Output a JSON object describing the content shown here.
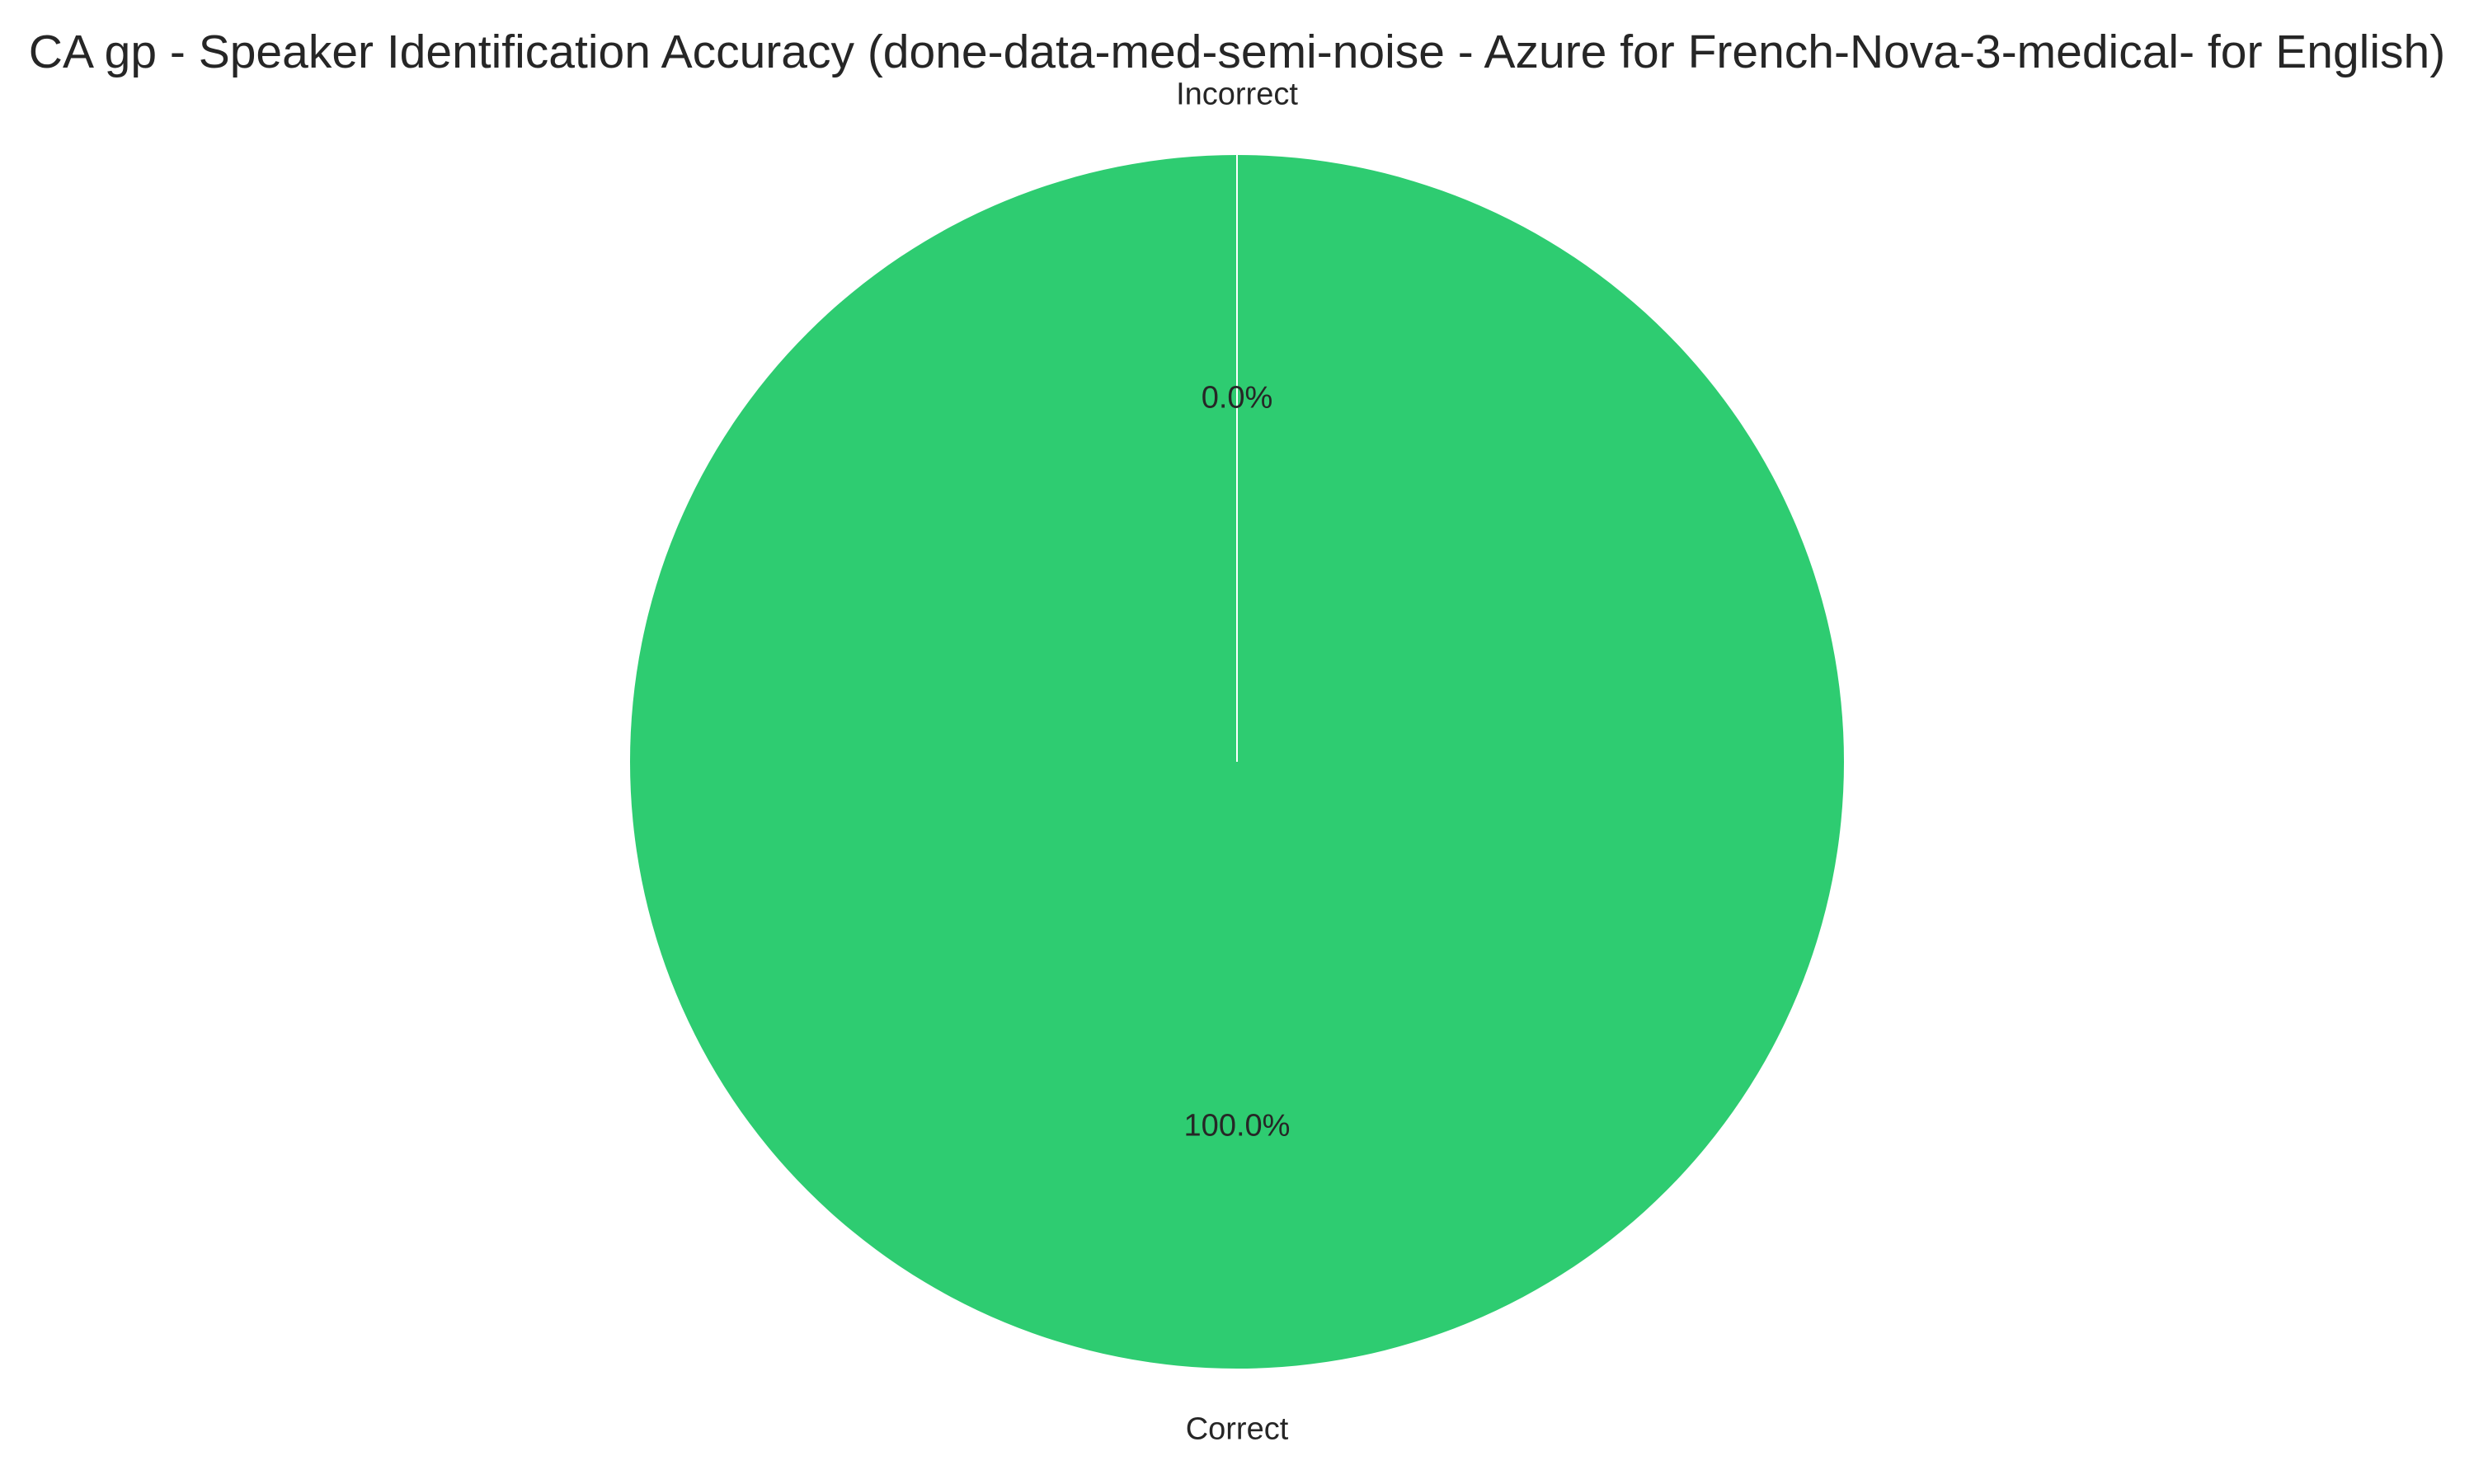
{
  "chart_data": {
    "type": "pie",
    "title": "CA gp - Speaker Identification Accuracy (done-data-med-semi-noise - Azure for French-Nova-3-medical- for English)",
    "categories": [
      "Correct",
      "Incorrect"
    ],
    "values": [
      100.0,
      0.0
    ],
    "percent_labels": [
      "100.0%",
      "0.0%"
    ],
    "colors": [
      "#2ecc71",
      "#e74c3c"
    ],
    "edge_color": "#ffffff",
    "start_angle_deg": 90,
    "direction": "counterclockwise",
    "legend": "none"
  }
}
